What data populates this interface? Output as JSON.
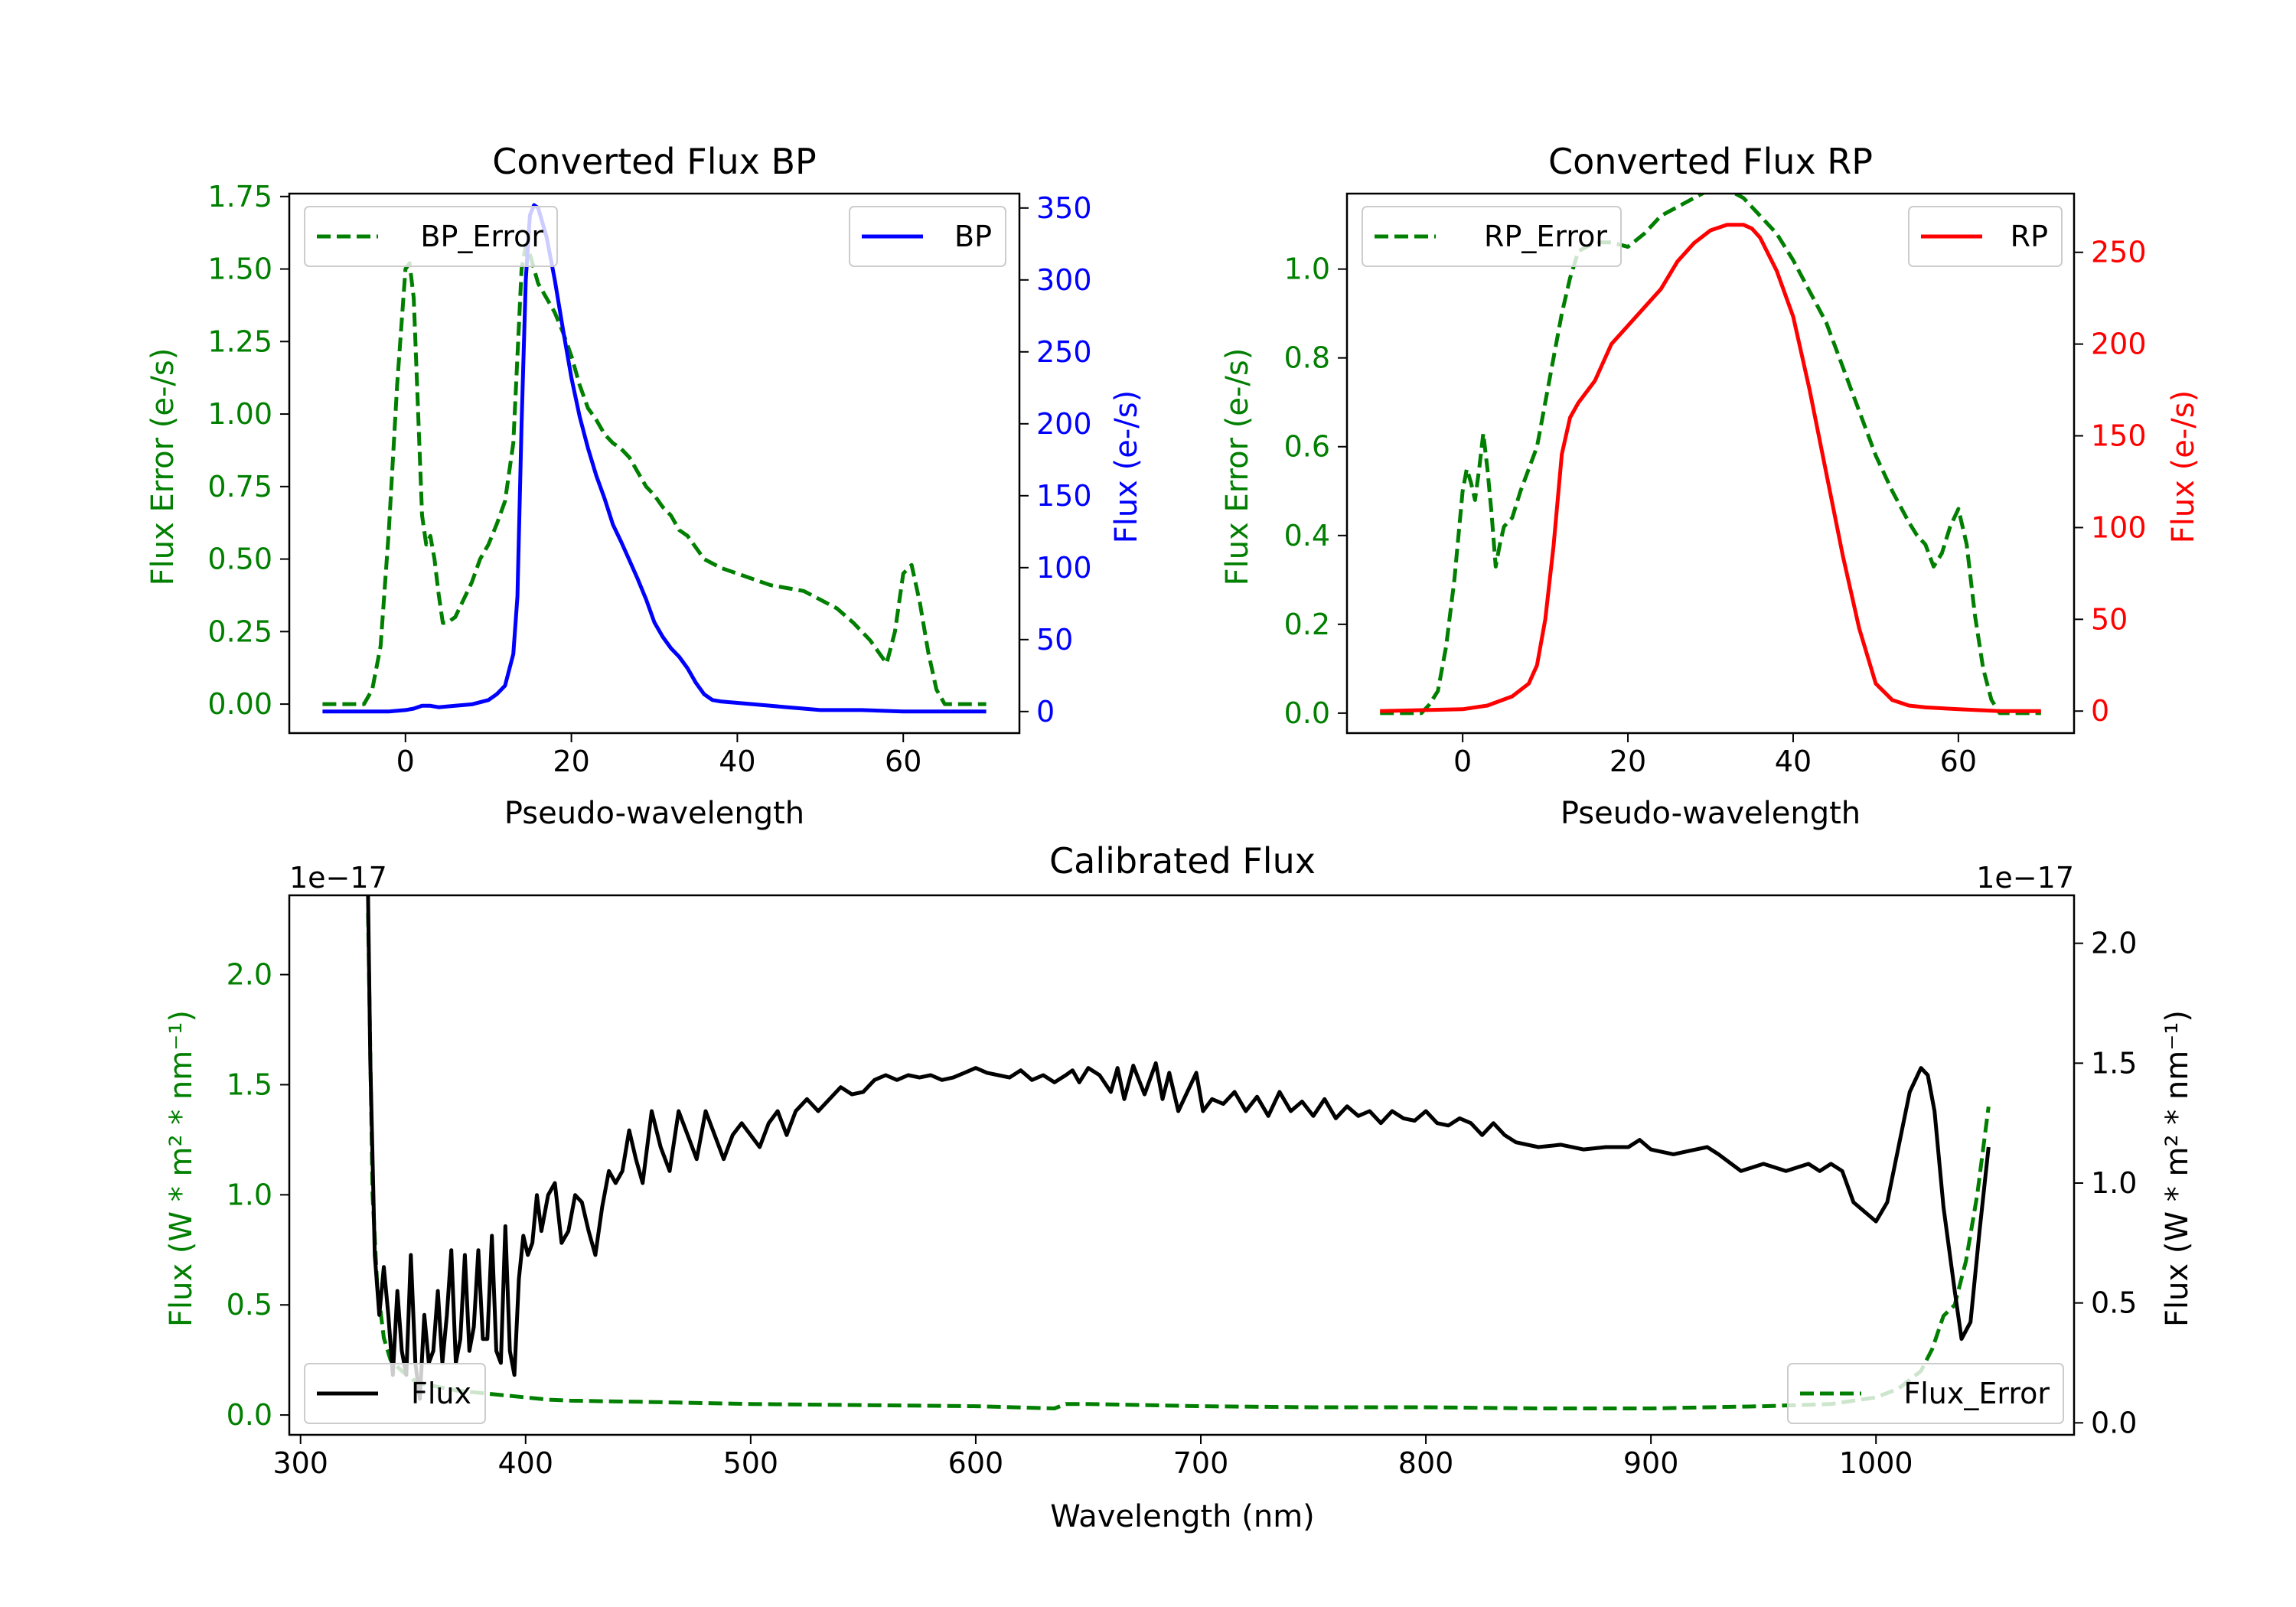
{
  "colors": {
    "green": "#007f00",
    "blue": "#0000ff",
    "red": "#ff0000",
    "black": "#000000"
  },
  "chart_data": [
    {
      "id": "bp",
      "type": "line",
      "title": "Converted Flux BP",
      "xlabel": "Pseudo-wavelength",
      "ylabel_left": "Flux Error (e-/s)",
      "ylabel_right": "Flux (e-/s)",
      "xlim": [
        -14,
        74
      ],
      "ylim_left": [
        -0.1,
        1.76
      ],
      "ylim_right": [
        -15,
        360
      ],
      "xticks": [
        0,
        20,
        40,
        60
      ],
      "yticks_left": [
        "0.00",
        "0.25",
        "0.50",
        "0.75",
        "1.00",
        "1.25",
        "1.50",
        "1.75"
      ],
      "yticks_right": [
        0,
        50,
        100,
        150,
        200,
        250,
        300,
        350
      ],
      "legend_left": "BP_Error",
      "legend_right": "BP",
      "error_series": {
        "name": "BP_Error",
        "axis": "left",
        "style": "dashed",
        "x": [
          -10,
          -5,
          -4,
          -3,
          -2,
          -1,
          0,
          0.5,
          1,
          2,
          2.5,
          3,
          3.5,
          4,
          4.5,
          5,
          6,
          7,
          8,
          9,
          10,
          11,
          12,
          13,
          13.5,
          14,
          14.5,
          15,
          16,
          17,
          18,
          19,
          20,
          21,
          22,
          23,
          24,
          25,
          26,
          27,
          28,
          29,
          30,
          31,
          32,
          33,
          34,
          35,
          36,
          38,
          40,
          42,
          44,
          46,
          48,
          50,
          52,
          54,
          55,
          56,
          57,
          58,
          59,
          60,
          61,
          62,
          63,
          64,
          65,
          66,
          67,
          68,
          69,
          70
        ],
        "y": [
          0,
          0,
          0.05,
          0.2,
          0.6,
          1.1,
          1.5,
          1.52,
          1.4,
          0.65,
          0.55,
          0.58,
          0.5,
          0.38,
          0.28,
          0.28,
          0.3,
          0.36,
          0.42,
          0.5,
          0.55,
          0.62,
          0.7,
          0.9,
          1.2,
          1.5,
          1.58,
          1.55,
          1.45,
          1.4,
          1.35,
          1.28,
          1.2,
          1.1,
          1.02,
          0.98,
          0.93,
          0.9,
          0.88,
          0.85,
          0.8,
          0.75,
          0.72,
          0.68,
          0.65,
          0.6,
          0.58,
          0.54,
          0.5,
          0.47,
          0.45,
          0.43,
          0.41,
          0.4,
          0.39,
          0.36,
          0.33,
          0.28,
          0.25,
          0.22,
          0.18,
          0.14,
          0.25,
          0.45,
          0.48,
          0.35,
          0.18,
          0.05,
          0,
          0,
          0,
          0,
          0,
          0
        ]
      },
      "flux_series": {
        "name": "BP",
        "axis": "right",
        "style": "solid",
        "x": [
          -10,
          -5,
          -2,
          0,
          1,
          2,
          3,
          4,
          6,
          8,
          10,
          11,
          12,
          13,
          13.5,
          14,
          14.5,
          15,
          15.5,
          16,
          17,
          18,
          19,
          20,
          21,
          22,
          23,
          24,
          25,
          26,
          27,
          28,
          29,
          30,
          31,
          32,
          33,
          34,
          35,
          36,
          37,
          38,
          40,
          42,
          44,
          46,
          48,
          50,
          55,
          60,
          65,
          70
        ],
        "y": [
          0,
          0,
          0,
          1,
          2,
          4,
          4,
          3,
          4,
          5,
          8,
          12,
          18,
          40,
          80,
          200,
          300,
          345,
          352,
          350,
          330,
          300,
          265,
          232,
          205,
          183,
          164,
          148,
          130,
          118,
          105,
          92,
          78,
          62,
          52,
          44,
          38,
          30,
          20,
          12,
          8,
          7,
          6,
          5,
          4,
          3,
          2,
          1,
          1,
          0,
          0,
          0
        ]
      }
    },
    {
      "id": "rp",
      "type": "line",
      "title": "Converted Flux RP",
      "xlabel": "Pseudo-wavelength",
      "ylabel_left": "Flux Error (e-/s)",
      "ylabel_right": "Flux (e-/s)",
      "xlim": [
        -14,
        74
      ],
      "ylim_left": [
        -0.045,
        1.17
      ],
      "ylim_right": [
        -12,
        282
      ],
      "xticks": [
        0,
        20,
        40,
        60
      ],
      "yticks_left": [
        "0.0",
        "0.2",
        "0.4",
        "0.6",
        "0.8",
        "1.0"
      ],
      "yticks_right": [
        0,
        50,
        100,
        150,
        200,
        250
      ],
      "legend_left": "RP_Error",
      "legend_right": "RP",
      "error_series": {
        "name": "RP_Error",
        "axis": "left",
        "style": "dashed",
        "x": [
          -10,
          -5,
          -4,
          -3,
          -2,
          -1,
          0,
          0.5,
          1,
          1.5,
          2,
          2.5,
          3,
          3.5,
          4,
          4.5,
          5,
          6,
          7,
          8,
          9,
          10,
          11,
          12,
          13,
          14,
          16,
          18,
          20,
          22,
          24,
          26,
          28,
          30,
          32,
          34,
          36,
          38,
          40,
          42,
          44,
          46,
          48,
          50,
          52,
          54,
          55,
          56,
          57,
          58,
          59,
          60,
          61,
          62,
          63,
          64,
          65,
          66,
          68,
          70
        ],
        "y": [
          0,
          0,
          0.02,
          0.05,
          0.15,
          0.3,
          0.5,
          0.55,
          0.52,
          0.48,
          0.55,
          0.63,
          0.55,
          0.45,
          0.33,
          0.38,
          0.42,
          0.44,
          0.5,
          0.55,
          0.6,
          0.7,
          0.8,
          0.9,
          0.98,
          1.04,
          1.06,
          1.06,
          1.05,
          1.08,
          1.12,
          1.14,
          1.16,
          1.18,
          1.18,
          1.16,
          1.12,
          1.08,
          1.02,
          0.95,
          0.88,
          0.78,
          0.68,
          0.58,
          0.5,
          0.43,
          0.4,
          0.38,
          0.33,
          0.36,
          0.42,
          0.46,
          0.38,
          0.22,
          0.1,
          0.03,
          0,
          0,
          0,
          0
        ]
      },
      "flux_series": {
        "name": "RP",
        "axis": "right",
        "style": "solid",
        "x": [
          -10,
          0,
          3,
          6,
          8,
          9,
          10,
          11,
          12,
          13,
          14,
          16,
          18,
          20,
          22,
          24,
          26,
          28,
          30,
          32,
          33,
          34,
          35,
          36,
          38,
          40,
          42,
          44,
          46,
          48,
          50,
          52,
          54,
          56,
          60,
          65,
          70
        ],
        "y": [
          0,
          1,
          3,
          8,
          15,
          25,
          50,
          90,
          140,
          160,
          168,
          180,
          200,
          210,
          220,
          230,
          245,
          255,
          262,
          265,
          265,
          265,
          263,
          258,
          240,
          215,
          175,
          130,
          85,
          45,
          15,
          6,
          3,
          2,
          1,
          0,
          0
        ]
      }
    },
    {
      "id": "cal",
      "type": "line",
      "title": "Calibrated Flux",
      "xlabel": "Wavelength (nm)",
      "ylabel_left": "Flux (W * m² * nm⁻¹)",
      "ylabel_right": "Flux (W * m² * nm⁻¹)",
      "offset_left": "1e−17",
      "offset_right": "1e−17",
      "xlim": [
        295,
        1088
      ],
      "ylim_left": [
        -0.09,
        2.36
      ],
      "ylim_right": [
        -0.05,
        2.2
      ],
      "xticks": [
        300,
        400,
        500,
        600,
        700,
        800,
        900,
        1000
      ],
      "yticks_left": [
        "0.0",
        "0.5",
        "1.0",
        "1.5",
        "2.0"
      ],
      "yticks_right": [
        "0.0",
        "0.5",
        "1.0",
        "1.5",
        "2.0"
      ],
      "legend_left": "Flux",
      "legend_right": "Flux_Error",
      "flux_series": {
        "name": "Flux",
        "axis": "right",
        "style": "solid",
        "x": [
          330,
          331,
          333,
          335,
          337,
          339,
          341,
          343,
          345,
          347,
          349,
          351,
          353,
          355,
          357,
          359,
          361,
          363,
          365,
          367,
          369,
          371,
          373,
          375,
          377,
          379,
          381,
          383,
          385,
          387,
          389,
          391,
          393,
          395,
          397,
          399,
          401,
          403,
          405,
          407,
          410,
          413,
          416,
          419,
          422,
          425,
          428,
          431,
          434,
          437,
          440,
          443,
          446,
          449,
          452,
          456,
          460,
          464,
          468,
          472,
          476,
          480,
          484,
          488,
          492,
          496,
          500,
          504,
          508,
          512,
          516,
          520,
          525,
          530,
          535,
          540,
          545,
          550,
          555,
          560,
          565,
          570,
          575,
          580,
          585,
          590,
          595,
          600,
          605,
          610,
          615,
          620,
          625,
          630,
          635,
          640,
          643,
          646,
          650,
          655,
          660,
          663,
          666,
          670,
          675,
          680,
          683,
          686,
          690,
          695,
          698,
          701,
          705,
          710,
          715,
          720,
          725,
          730,
          735,
          740,
          745,
          750,
          755,
          760,
          765,
          770,
          775,
          780,
          785,
          790,
          795,
          800,
          805,
          810,
          815,
          820,
          825,
          830,
          835,
          840,
          850,
          860,
          870,
          880,
          890,
          895,
          900,
          910,
          920,
          925,
          930,
          940,
          950,
          960,
          970,
          975,
          980,
          985,
          990,
          995,
          1000,
          1005,
          1010,
          1015,
          1020,
          1023,
          1026,
          1030,
          1035,
          1038,
          1042,
          1046,
          1050
        ],
        "y": [
          2.2,
          1.5,
          0.7,
          0.45,
          0.65,
          0.45,
          0.2,
          0.55,
          0.3,
          0.2,
          0.7,
          0.25,
          0.1,
          0.45,
          0.25,
          0.3,
          0.55,
          0.25,
          0.45,
          0.72,
          0.25,
          0.35,
          0.7,
          0.3,
          0.4,
          0.72,
          0.35,
          0.35,
          0.78,
          0.3,
          0.25,
          0.82,
          0.3,
          0.2,
          0.6,
          0.78,
          0.7,
          0.75,
          0.95,
          0.8,
          0.95,
          1.0,
          0.75,
          0.8,
          0.95,
          0.92,
          0.8,
          0.7,
          0.9,
          1.05,
          1.0,
          1.05,
          1.22,
          1.1,
          1.0,
          1.3,
          1.15,
          1.05,
          1.3,
          1.2,
          1.1,
          1.3,
          1.2,
          1.1,
          1.2,
          1.25,
          1.2,
          1.15,
          1.25,
          1.3,
          1.2,
          1.3,
          1.35,
          1.3,
          1.35,
          1.4,
          1.37,
          1.38,
          1.43,
          1.45,
          1.43,
          1.45,
          1.44,
          1.45,
          1.43,
          1.44,
          1.46,
          1.48,
          1.46,
          1.45,
          1.44,
          1.47,
          1.43,
          1.45,
          1.42,
          1.45,
          1.47,
          1.42,
          1.48,
          1.45,
          1.38,
          1.48,
          1.35,
          1.49,
          1.37,
          1.5,
          1.35,
          1.46,
          1.3,
          1.4,
          1.46,
          1.3,
          1.35,
          1.33,
          1.38,
          1.3,
          1.36,
          1.28,
          1.38,
          1.3,
          1.34,
          1.28,
          1.35,
          1.27,
          1.32,
          1.28,
          1.3,
          1.25,
          1.3,
          1.27,
          1.26,
          1.3,
          1.25,
          1.24,
          1.27,
          1.25,
          1.2,
          1.25,
          1.2,
          1.17,
          1.15,
          1.16,
          1.14,
          1.15,
          1.15,
          1.18,
          1.14,
          1.12,
          1.14,
          1.15,
          1.12,
          1.05,
          1.08,
          1.05,
          1.08,
          1.05,
          1.08,
          1.05,
          0.92,
          0.88,
          0.84,
          0.92,
          1.15,
          1.38,
          1.48,
          1.45,
          1.3,
          0.9,
          0.55,
          0.35,
          0.42,
          0.8,
          1.15
        ]
      },
      "error_series": {
        "name": "Flux_Error",
        "axis": "left",
        "style": "dashed",
        "x": [
          330,
          332,
          334,
          337,
          340,
          345,
          350,
          355,
          360,
          365,
          370,
          380,
          390,
          400,
          410,
          420,
          450,
          500,
          550,
          600,
          635,
          640,
          650,
          700,
          750,
          800,
          850,
          900,
          950,
          980,
          1000,
          1010,
          1020,
          1025,
          1030,
          1035,
          1040,
          1045,
          1050
        ],
        "y": [
          2.28,
          1.0,
          0.6,
          0.35,
          0.25,
          0.2,
          0.16,
          0.14,
          0.13,
          0.12,
          0.11,
          0.1,
          0.09,
          0.08,
          0.07,
          0.065,
          0.06,
          0.05,
          0.045,
          0.04,
          0.03,
          0.05,
          0.05,
          0.04,
          0.035,
          0.035,
          0.03,
          0.03,
          0.04,
          0.05,
          0.08,
          0.12,
          0.2,
          0.3,
          0.45,
          0.5,
          0.7,
          1.0,
          1.4
        ]
      }
    }
  ]
}
